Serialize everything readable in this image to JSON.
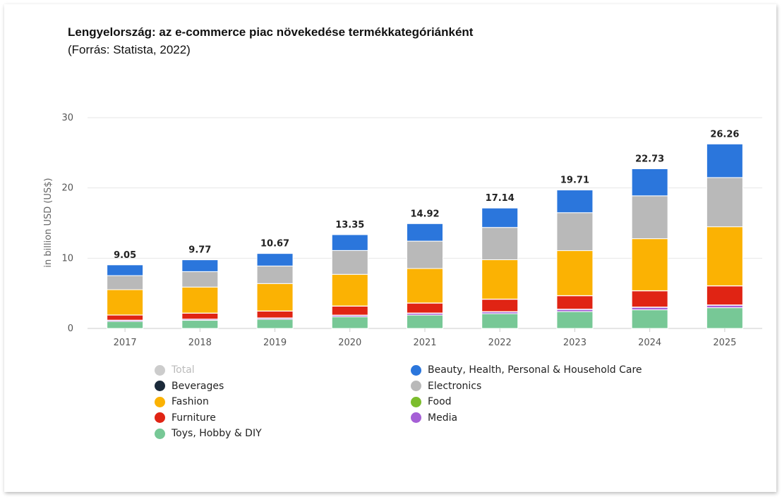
{
  "chart_data": {
    "type": "bar",
    "stacked": true,
    "title": "Lengyelország: az e-commerce piac növekedése termékkategóriánként",
    "subtitle": "(Forrás: Statista, 2022)",
    "xlabel": "",
    "ylabel": "in billion USD (US$)",
    "ylim": [
      0,
      30
    ],
    "yticks": [
      0,
      10,
      20,
      30
    ],
    "grid": true,
    "legend_position": "bottom",
    "categories": [
      "2017",
      "2018",
      "2019",
      "2020",
      "2021",
      "2022",
      "2023",
      "2024",
      "2025"
    ],
    "totals": [
      "9.05",
      "9.77",
      "10.67",
      "13.35",
      "14.92",
      "17.14",
      "19.71",
      "22.73",
      "26.26"
    ],
    "series": [
      {
        "name": "Toys, Hobby & DIY",
        "color": "#77c896",
        "values": [
          1.0,
          1.15,
          1.3,
          1.65,
          1.9,
          2.1,
          2.4,
          2.65,
          2.95
        ]
      },
      {
        "name": "Media",
        "color": "#a55fd6",
        "values": [
          0.15,
          0.15,
          0.17,
          0.2,
          0.25,
          0.25,
          0.3,
          0.35,
          0.35
        ]
      },
      {
        "name": "Food",
        "color": "#7cbd2d",
        "values": [
          0.03,
          0.03,
          0.03,
          0.05,
          0.05,
          0.05,
          0.05,
          0.05,
          0.05
        ]
      },
      {
        "name": "Furniture",
        "color": "#e02414",
        "values": [
          0.72,
          0.84,
          0.97,
          1.27,
          1.4,
          1.75,
          1.9,
          2.3,
          2.7
        ]
      },
      {
        "name": "Beverages",
        "color": "#1b2a3a",
        "values": [
          0.02,
          0.02,
          0.02,
          0.03,
          0.03,
          0.03,
          0.03,
          0.03,
          0.03
        ]
      },
      {
        "name": "Fashion",
        "color": "#fbb203",
        "values": [
          3.6,
          3.7,
          3.9,
          4.5,
          4.9,
          5.6,
          6.4,
          7.4,
          8.4
        ]
      },
      {
        "name": "Electronics",
        "color": "#b9b9b9",
        "values": [
          2.0,
          2.2,
          2.5,
          3.4,
          3.9,
          4.6,
          5.4,
          6.1,
          7.0
        ]
      },
      {
        "name": "Beauty, Health, Personal & Household Care",
        "color": "#2b76dc",
        "values": [
          1.53,
          1.68,
          1.78,
          2.25,
          2.49,
          2.76,
          3.23,
          3.85,
          4.78
        ]
      }
    ],
    "legend": [
      {
        "name": "Total",
        "color": "#cccccc",
        "active": false
      },
      {
        "name": "Beverages",
        "color": "#1b2a3a",
        "active": true
      },
      {
        "name": "Fashion",
        "color": "#fbb203",
        "active": true
      },
      {
        "name": "Furniture",
        "color": "#e02414",
        "active": true
      },
      {
        "name": "Toys, Hobby & DIY",
        "color": "#77c896",
        "active": true
      },
      {
        "name": "Beauty, Health, Personal & Household Care",
        "color": "#2b76dc",
        "active": true
      },
      {
        "name": "Electronics",
        "color": "#b9b9b9",
        "active": true
      },
      {
        "name": "Food",
        "color": "#7cbd2d",
        "active": true
      },
      {
        "name": "Media",
        "color": "#a55fd6",
        "active": true
      }
    ]
  }
}
